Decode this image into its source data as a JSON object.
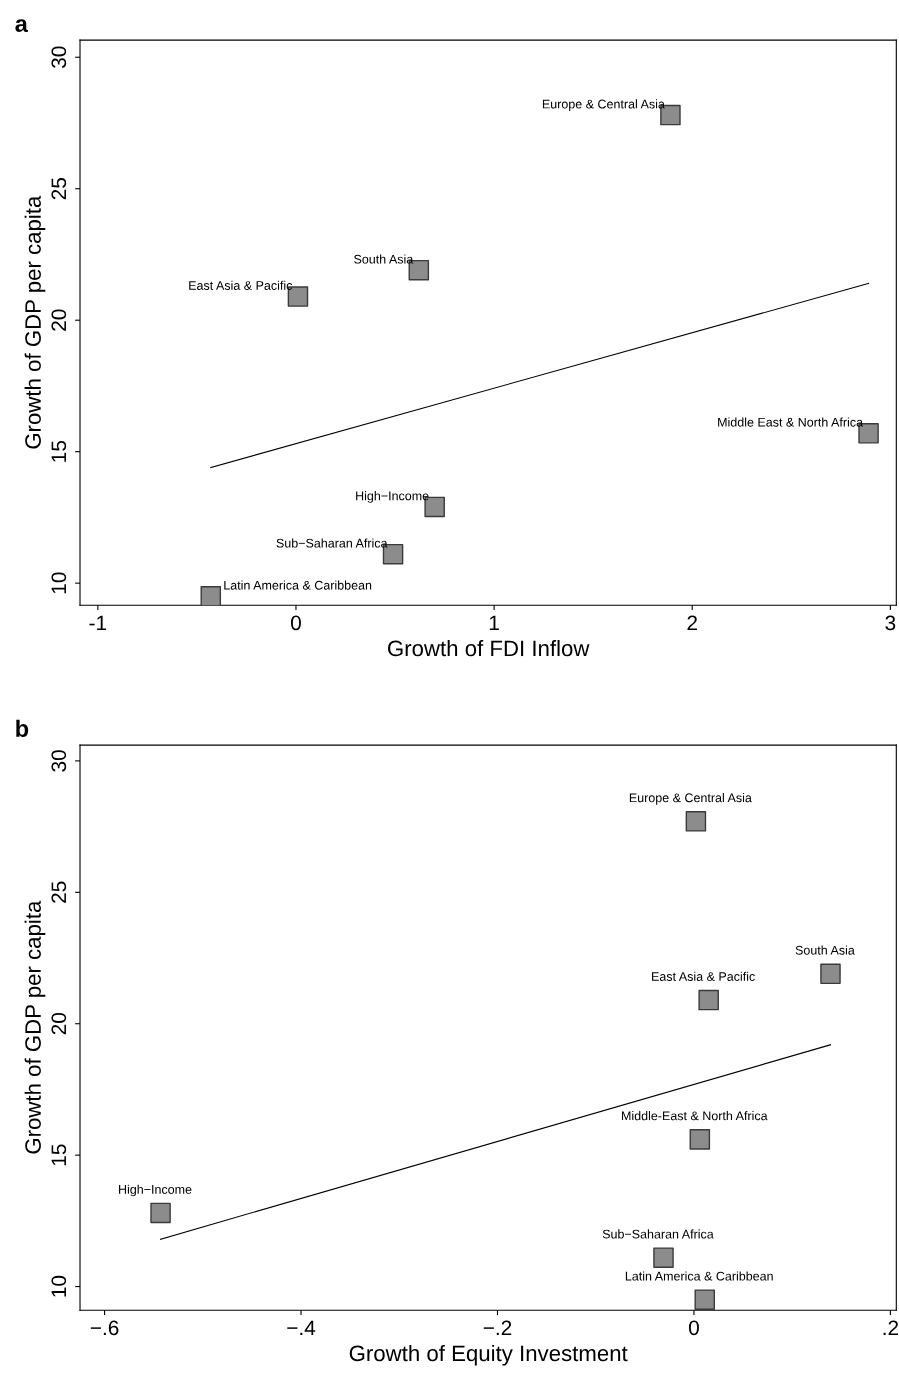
{
  "chart_data": [
    {
      "type": "scatter",
      "title": "a",
      "xlabel": "Growth of FDI Inflow",
      "ylabel": "Growth of GDP per capita",
      "xlim": [
        -1.09,
        3.03
      ],
      "ylim": [
        9.16,
        30.65
      ],
      "xticks": [
        -1,
        0,
        1,
        2,
        3
      ],
      "yticks": [
        10,
        15,
        20,
        25,
        30
      ],
      "grid": false,
      "legend": false,
      "series": [
        {
          "type": "scatter",
          "marker": "square",
          "color": "#8c8c8c",
          "x": [
            1.89,
            0.62,
            0.01,
            2.89,
            0.7,
            0.49,
            -0.43
          ],
          "values": [
            27.8,
            21.9,
            20.9,
            15.7,
            12.9,
            11.1,
            9.5
          ]
        },
        {
          "type": "line",
          "marker": "none",
          "color": "#000000",
          "x": [
            -0.43,
            2.89
          ],
          "values": [
            14.4,
            21.4
          ]
        }
      ],
      "annotations": [
        {
          "text": "Europe & Central Asia",
          "x": 1.89,
          "y": 27.8
        },
        {
          "text": "South Asia",
          "x": 0.62,
          "y": 21.9
        },
        {
          "text": "East Asia & Pacific",
          "x": 0.01,
          "y": 20.9
        },
        {
          "text": "Middle East & North Africa",
          "x": 2.89,
          "y": 15.7
        },
        {
          "text": "High−Income",
          "x": 0.7,
          "y": 12.9
        },
        {
          "text": "Sub−Saharan Africa",
          "x": 0.49,
          "y": 11.1
        },
        {
          "text": "Latin America & Caribbean",
          "x": -0.43,
          "y": 9.5
        }
      ]
    },
    {
      "type": "scatter",
      "title": "b",
      "xlabel": "Growth of Equity Investment",
      "ylabel": "Growth of GDP per capita",
      "xlim": [
        -0.625,
        0.206
      ],
      "ylim": [
        9.1,
        30.6
      ],
      "xticks": [
        {
          "value": -0.6,
          "label": "−.6"
        },
        {
          "value": -0.4,
          "label": "−.4"
        },
        {
          "value": -0.2,
          "label": "−.2"
        },
        0,
        {
          "value": 0.2,
          "label": ".2"
        }
      ],
      "yticks": [
        10,
        15,
        20,
        25,
        30
      ],
      "grid": false,
      "legend": false,
      "series": [
        {
          "type": "scatter",
          "marker": "square",
          "color": "#8c8c8c",
          "x": [
            0.002,
            0.139,
            0.015,
            0.006,
            -0.543,
            -0.031,
            0.011
          ],
          "values": [
            27.7,
            21.9,
            20.9,
            15.6,
            12.8,
            11.1,
            9.5
          ]
        },
        {
          "type": "line",
          "marker": "none",
          "color": "#000000",
          "x": [
            -0.543,
            0.139
          ],
          "values": [
            11.8,
            19.2
          ]
        }
      ],
      "annotations": [
        {
          "text": "Europe & Central Asia",
          "x": 0.002,
          "y": 27.7
        },
        {
          "text": "South Asia",
          "x": 0.139,
          "y": 21.9
        },
        {
          "text": "East Asia & Pacific",
          "x": 0.015,
          "y": 20.9
        },
        {
          "text": "Middle-East & North Africa",
          "x": 0.006,
          "y": 15.6
        },
        {
          "text": "High−Income",
          "x": -0.543,
          "y": 12.8
        },
        {
          "text": "Sub−Saharan Africa",
          "x": -0.031,
          "y": 11.1
        },
        {
          "text": "Latin America & Caribbean",
          "x": 0.011,
          "y": 9.5
        }
      ]
    }
  ]
}
